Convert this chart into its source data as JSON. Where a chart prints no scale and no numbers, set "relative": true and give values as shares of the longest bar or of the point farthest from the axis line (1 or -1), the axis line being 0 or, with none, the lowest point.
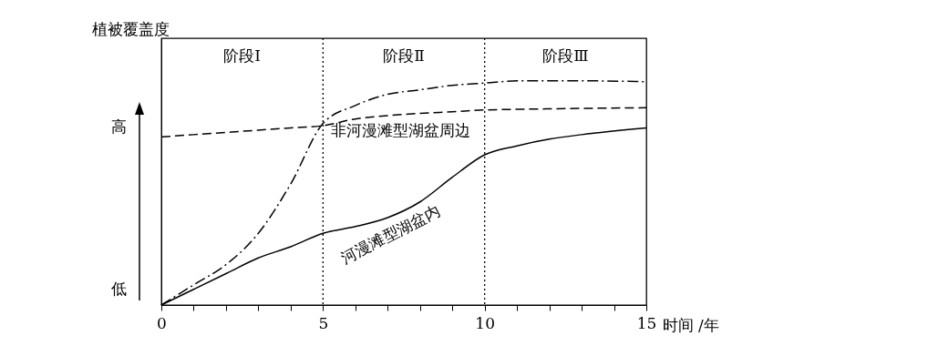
{
  "chart_data": {
    "type": "line",
    "relative": true,
    "ylabel": "植被覆盖度",
    "xlabel": "时间 /年",
    "x": [
      0,
      1,
      2,
      3,
      4,
      5,
      6,
      7,
      8,
      9,
      10,
      11,
      12,
      13,
      15
    ],
    "xlim": [
      0,
      15
    ],
    "xticks": [
      0,
      {
        "value": 1,
        "label": null
      },
      {
        "value": 2,
        "label": null
      },
      {
        "value": 3,
        "label": null
      },
      {
        "value": 4,
        "label": null
      },
      5,
      {
        "value": 6,
        "label": null
      },
      {
        "value": 7,
        "label": null
      },
      {
        "value": 8,
        "label": null
      },
      {
        "value": 9,
        "label": null
      },
      10,
      {
        "value": 11,
        "label": null
      },
      {
        "value": 12,
        "label": null
      },
      {
        "value": 13,
        "label": null
      },
      {
        "value": 14,
        "label": null
      },
      15
    ],
    "series": [
      {
        "color": "#000000",
        "line_style": "dashdot",
        "values": [
          0,
          0.09,
          0.18,
          0.32,
          0.54,
          0.81,
          0.89,
          0.94,
          0.96,
          0.98,
          0.99,
          1,
          1,
          1,
          0.996
        ]
      },
      {
        "name": "非河漫滩型湖盆周边",
        "color": "#000000",
        "line_style": "dashed",
        "values": [
          0.75,
          0.76,
          0.77,
          0.78,
          0.79,
          0.8,
          0.83,
          0.845,
          0.855,
          0.862,
          0.87,
          0.873,
          0.875,
          0.877,
          0.88
        ]
      },
      {
        "name": "河漫滩型湖盆内",
        "color": "#000000",
        "line_style": "solid",
        "values": [
          0,
          0.07,
          0.14,
          0.21,
          0.26,
          0.32,
          0.35,
          0.39,
          0.46,
          0.57,
          0.67,
          0.71,
          0.74,
          0.76,
          0.79
        ]
      }
    ],
    "ref_lines": [
      {
        "axis": "x",
        "value": 5,
        "line_style": "dotted"
      },
      {
        "axis": "x",
        "value": 10,
        "line_style": "dotted"
      }
    ],
    "annotations": [
      "高",
      "低",
      "阶段I",
      "阶段Ⅱ",
      "阶段Ⅲ"
    ],
    "grid": false
  }
}
